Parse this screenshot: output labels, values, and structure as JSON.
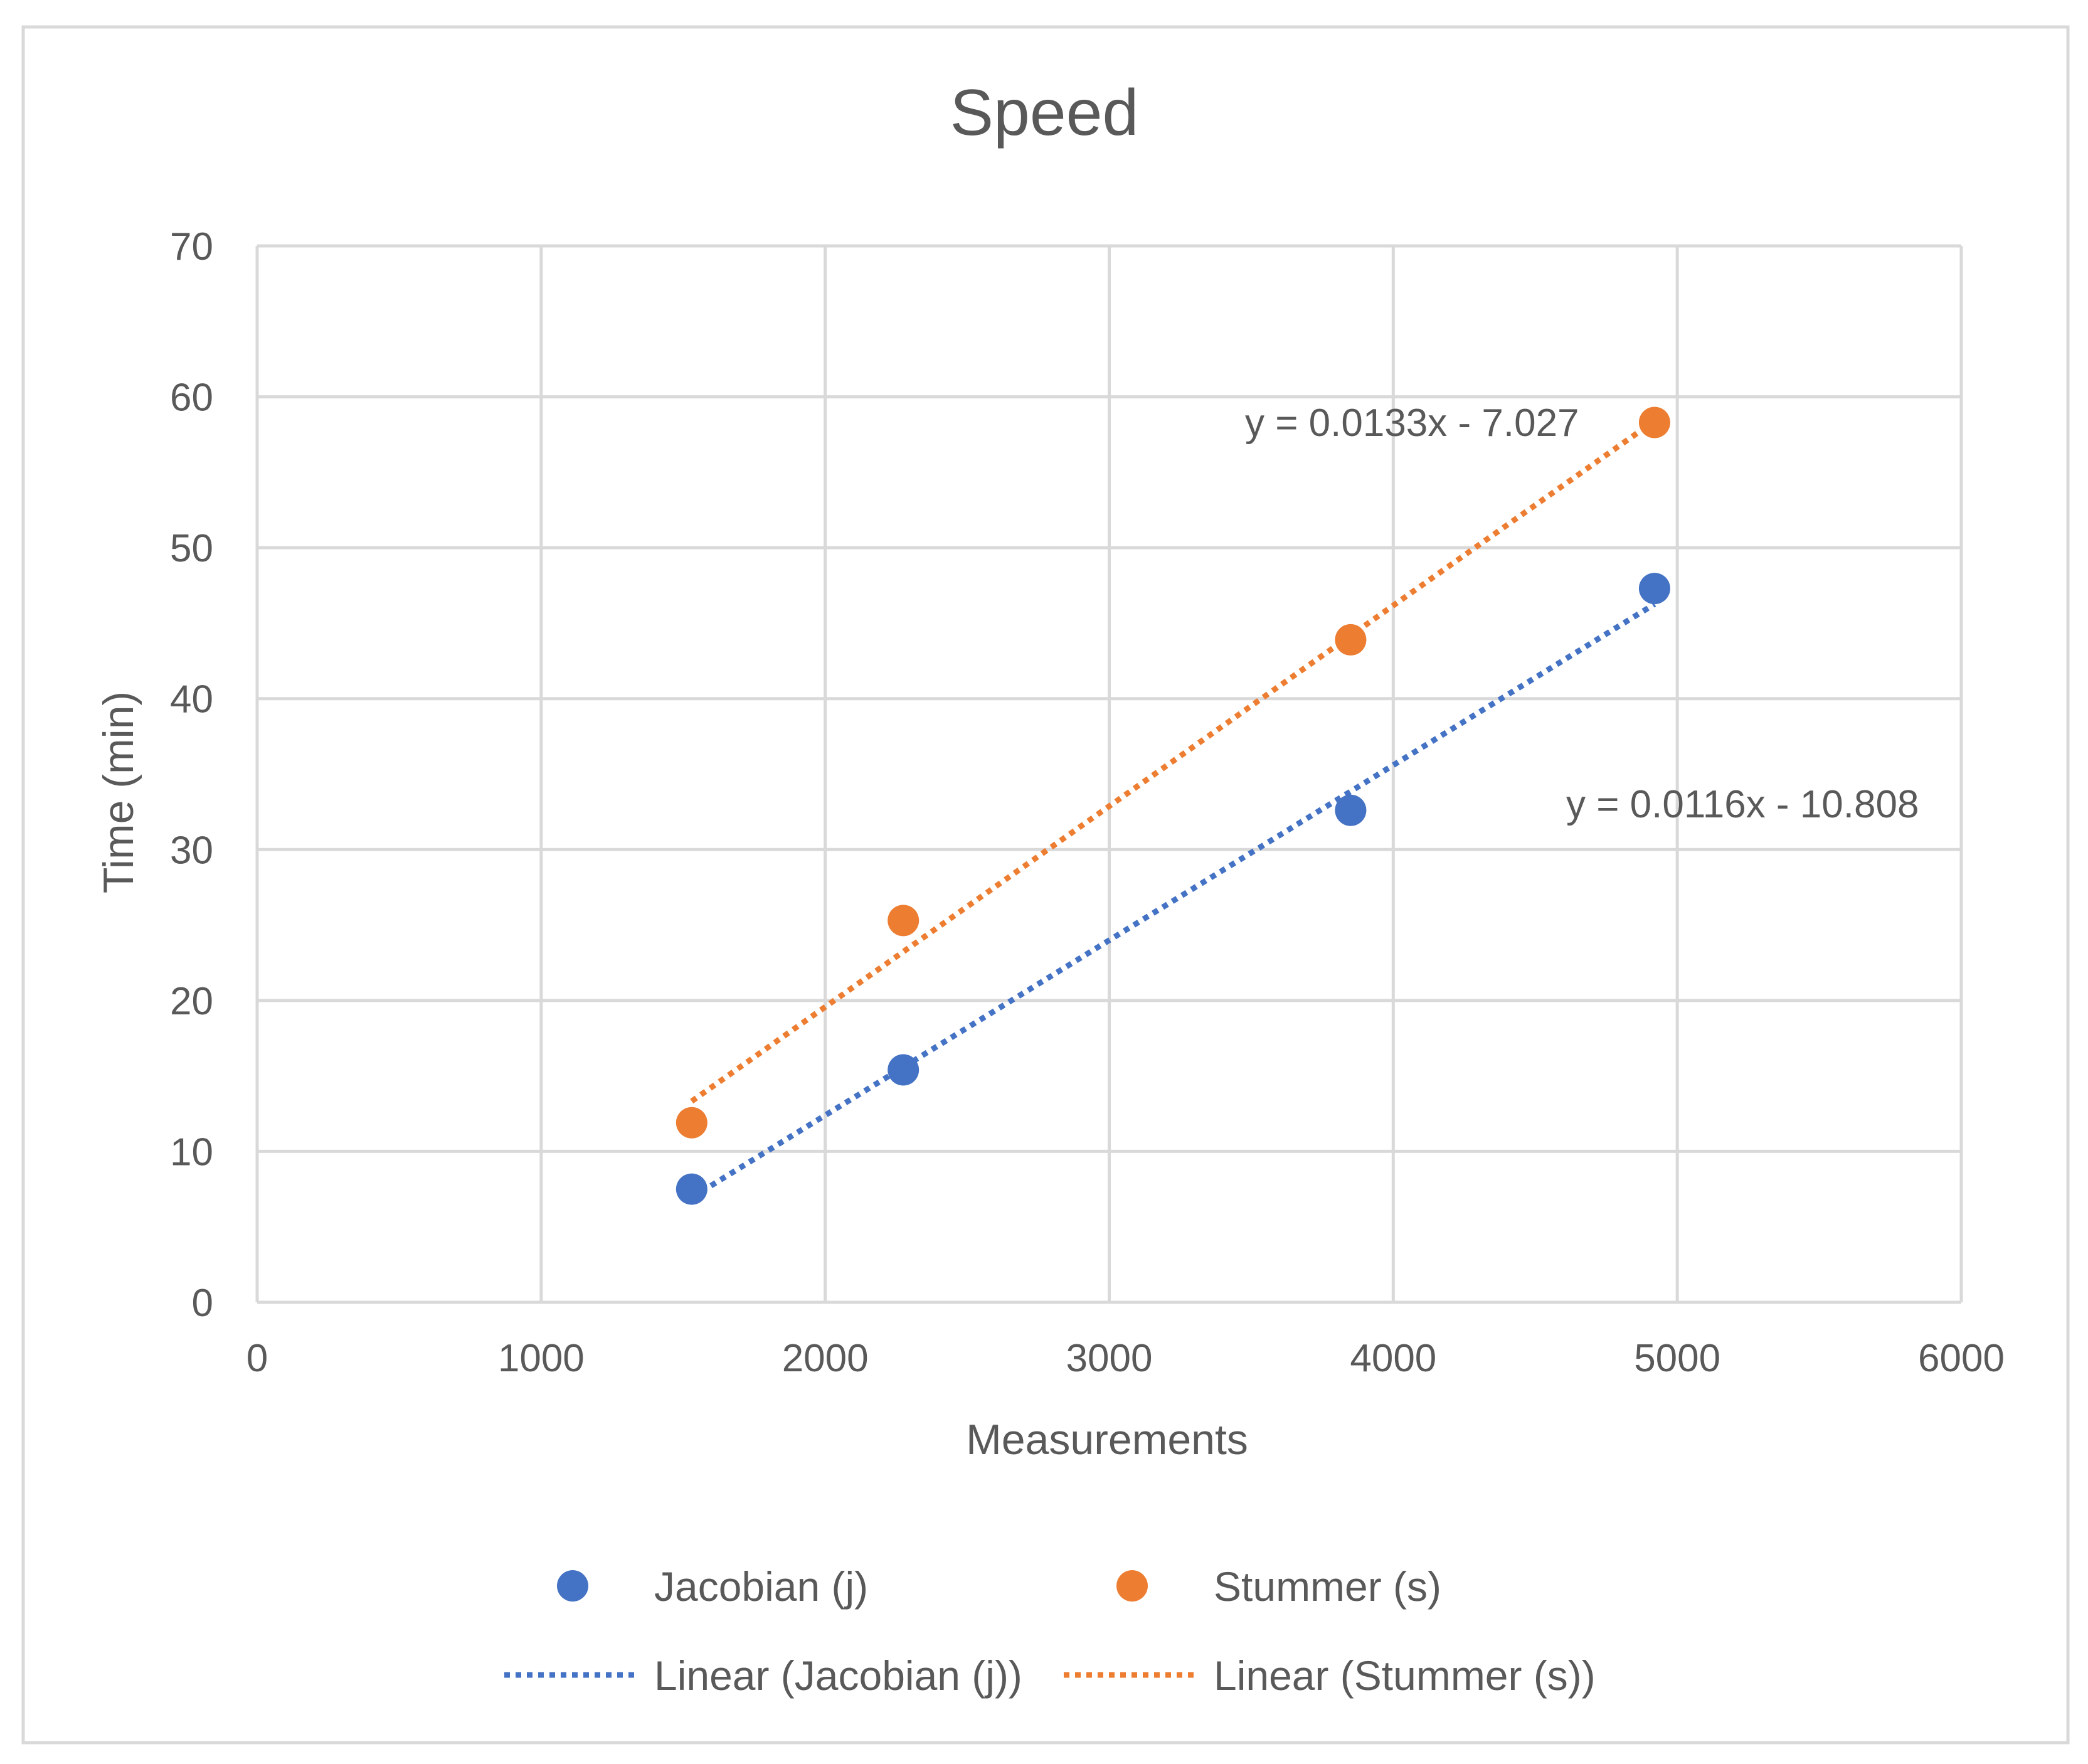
{
  "chart_data": {
    "type": "scatter",
    "title": "Speed",
    "xlabel": "Measurements",
    "ylabel": "Time (min)",
    "xlim": [
      0,
      6000
    ],
    "ylim": [
      0,
      70
    ],
    "xticks": [
      0,
      1000,
      2000,
      3000,
      4000,
      5000,
      6000
    ],
    "yticks": [
      0,
      10,
      20,
      30,
      40,
      50,
      60,
      70
    ],
    "grid": true,
    "legend_position": "bottom",
    "series": [
      {
        "name": "Jacobian (j)",
        "color": "#4472C4",
        "x": [
          1530,
          2275,
          3850,
          4920
        ],
        "y": [
          7.5,
          15.4,
          32.6,
          47.3
        ],
        "trendline": {
          "name": "Linear (Jacobian (j))",
          "slope": 0.0116,
          "intercept": -10.808,
          "equation": "y = 0.0116x - 10.808"
        }
      },
      {
        "name": "Stummer (s)",
        "color": "#ED7D31",
        "x": [
          1530,
          2275,
          3850,
          4920
        ],
        "y": [
          11.9,
          25.3,
          43.9,
          58.3
        ],
        "trendline": {
          "name": "Linear (Stummer (s))",
          "slope": 0.0133,
          "intercept": -7.027,
          "equation": "y = 0.0133x - 7.027"
        }
      }
    ]
  }
}
